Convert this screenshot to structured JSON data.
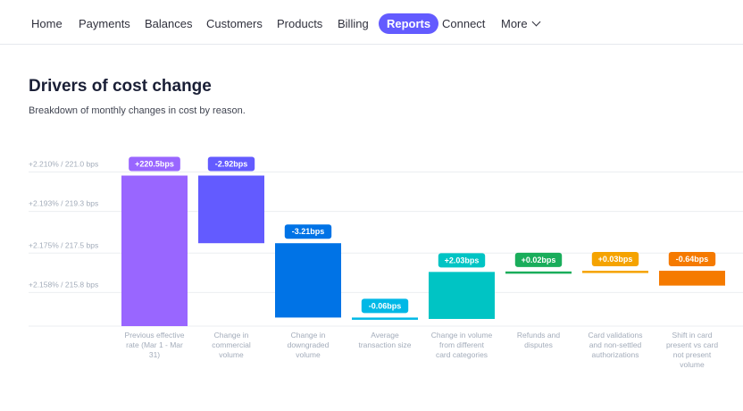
{
  "nav": {
    "items": [
      {
        "label": "Home",
        "active": false
      },
      {
        "label": "Payments",
        "active": false
      },
      {
        "label": "Balances",
        "active": false
      },
      {
        "label": "Customers",
        "active": false
      },
      {
        "label": "Products",
        "active": false
      },
      {
        "label": "Billing",
        "active": false
      },
      {
        "label": "Reports",
        "active": true
      },
      {
        "label": "Connect",
        "active": false
      }
    ],
    "more_label": "More",
    "more_icon": "chevron-down-icon",
    "accent_color": "#635bff"
  },
  "page": {
    "title": "Drivers of cost change",
    "subtitle": "Breakdown of monthly changes in cost by reason."
  },
  "chart_data": {
    "type": "bar",
    "subtype": "waterfall",
    "y_ticks": [
      {
        "value": 221.0,
        "label": "+2.210% / 221.0 bps"
      },
      {
        "value": 219.3,
        "label": "+2.193% / 219.3 bps"
      },
      {
        "value": 217.5,
        "label": "+2.175% / 217.5 bps"
      },
      {
        "value": 215.8,
        "label": "+2.158% / 215.8 bps"
      }
    ],
    "ylim": [
      214.0,
      221.6
    ],
    "grid": true,
    "bars": [
      {
        "category": "Previous effective rate (Mar 1 - Mar 31)",
        "label": "+220.5bps",
        "start": 214.0,
        "end": 220.5,
        "color": "#9966ff"
      },
      {
        "category": "Change in commercial volume",
        "label": "-2.92bps",
        "start": 220.5,
        "end": 217.58,
        "color": "#635bff"
      },
      {
        "category": "Change in downgraded volume",
        "label": "-3.21bps",
        "start": 217.58,
        "end": 214.37,
        "color": "#0073e6"
      },
      {
        "category": "Average transaction size",
        "label": "-0.06bps",
        "start": 214.37,
        "end": 214.31,
        "color": "#00b8e6"
      },
      {
        "category": "Change in volume from different card categories",
        "label": "+2.03bps",
        "start": 214.31,
        "end": 216.34,
        "color": "#00c4c4"
      },
      {
        "category": "Refunds and disputes",
        "label": "+0.02bps",
        "start": 216.34,
        "end": 216.36,
        "color": "#1aad5b"
      },
      {
        "category": "Card validations and non-settled authorizations",
        "label": "+0.03bps",
        "start": 216.36,
        "end": 216.39,
        "color": "#f5a300"
      },
      {
        "category": "Shift in card present vs card not present volume",
        "label": "-0.64bps",
        "start": 216.39,
        "end": 215.75,
        "color": "#f57a00"
      }
    ],
    "x_label_lines": [
      [
        "Previous effective",
        "rate (Mar 1 - Mar",
        "31)"
      ],
      [
        "Change in",
        "commercial",
        "volume"
      ],
      [
        "Change in",
        "downgraded",
        "volume"
      ],
      [
        "Average",
        "transaction size"
      ],
      [
        "Change in volume",
        "from different",
        "card categories"
      ],
      [
        "Refunds and",
        "disputes"
      ],
      [
        "Card validations",
        "and non-settled",
        "authorizations"
      ],
      [
        "Shift in card",
        "present vs card",
        "not present",
        "volume"
      ]
    ]
  }
}
